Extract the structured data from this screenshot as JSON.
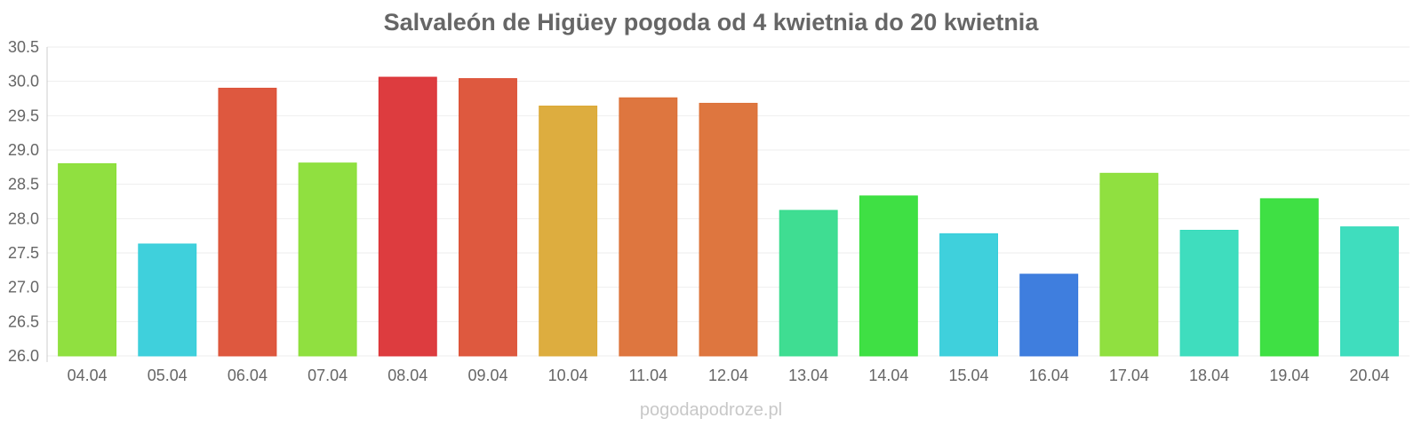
{
  "chart_data": {
    "type": "bar",
    "title": "Salvaleón de Higüey pogoda od 4 kwietnia do 20 kwietnia",
    "xlabel": "",
    "ylabel": "",
    "ylim": [
      26.0,
      30.5
    ],
    "y_ticks": [
      "26.0",
      "26.5",
      "27.0",
      "27.5",
      "28.0",
      "28.5",
      "29.0",
      "29.5",
      "30.0",
      "30.5"
    ],
    "grid": true,
    "categories": [
      "04.04",
      "05.04",
      "06.04",
      "07.04",
      "08.04",
      "09.04",
      "10.04",
      "11.04",
      "12.04",
      "13.04",
      "14.04",
      "15.04",
      "16.04",
      "17.04",
      "18.04",
      "19.04",
      "20.04"
    ],
    "values": [
      28.8,
      27.63,
      29.9,
      28.81,
      30.06,
      30.04,
      29.64,
      29.76,
      29.68,
      28.12,
      28.33,
      27.78,
      27.19,
      28.66,
      27.83,
      28.29,
      27.88
    ],
    "colors": [
      "#8ade36",
      "#35cdda",
      "#dc4f35",
      "#8ade36",
      "#db3135",
      "#dc5035",
      "#dba935",
      "#dc6f35",
      "#dc6f35",
      "#35db8c",
      "#35de3a",
      "#35cdda",
      "#3577dc",
      "#8ade36",
      "#35dbba",
      "#35de3a",
      "#35dbba"
    ]
  },
  "watermark": "pogodapodroze.pl"
}
